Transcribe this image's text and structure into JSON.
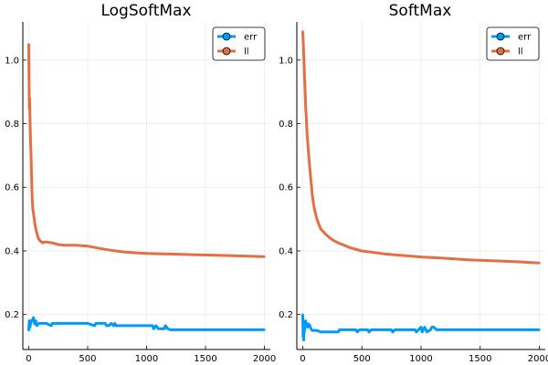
{
  "chart_data": [
    {
      "type": "line",
      "title": "LogSoftMax",
      "xlabel": "",
      "ylabel": "",
      "xlim": [
        -50,
        2050
      ],
      "ylim": [
        0.09,
        1.12
      ],
      "xticks": [
        0,
        500,
        1000,
        1500,
        2000
      ],
      "yticks": [
        0.2,
        0.4,
        0.6,
        0.8,
        1.0
      ],
      "xtick_labels": [
        "0",
        "500",
        "1000",
        "1500",
        "2000"
      ],
      "ytick_labels": [
        "0.2",
        "0.4",
        "0.6",
        "0.8",
        "1.0"
      ],
      "grid": true,
      "legend_position": "top-right",
      "series": [
        {
          "name": "err",
          "color": "#009af9",
          "x": [
            0,
            5,
            10,
            20,
            30,
            40,
            50,
            60,
            70,
            80,
            90,
            100,
            150,
            190,
            200,
            300,
            500,
            560,
            570,
            580,
            600,
            650,
            660,
            680,
            700,
            720,
            730,
            740,
            800,
            900,
            1000,
            1050,
            1060,
            1080,
            1100,
            1150,
            1160,
            1180,
            1200,
            1300,
            1500,
            1700,
            2000
          ],
          "y": [
            0.15,
            0.18,
            0.16,
            0.18,
            0.18,
            0.19,
            0.17,
            0.18,
            0.165,
            0.17,
            0.172,
            0.172,
            0.172,
            0.165,
            0.172,
            0.172,
            0.172,
            0.165,
            0.172,
            0.172,
            0.172,
            0.172,
            0.165,
            0.165,
            0.172,
            0.165,
            0.172,
            0.165,
            0.165,
            0.165,
            0.165,
            0.165,
            0.155,
            0.165,
            0.155,
            0.155,
            0.165,
            0.155,
            0.152,
            0.152,
            0.152,
            0.152,
            0.152
          ]
        },
        {
          "name": "ll",
          "color": "#e26f46",
          "x": [
            0,
            3,
            5,
            8,
            10,
            15,
            20,
            25,
            30,
            35,
            40,
            50,
            60,
            70,
            80,
            90,
            100,
            110,
            120,
            130,
            150,
            200,
            250,
            300,
            400,
            500,
            600,
            700,
            800,
            900,
            1000,
            1200,
            1400,
            1600,
            1800,
            2000
          ],
          "y": [
            1.05,
            0.95,
            0.85,
            0.88,
            0.84,
            0.75,
            0.7,
            0.62,
            0.56,
            0.53,
            0.52,
            0.49,
            0.47,
            0.455,
            0.44,
            0.435,
            0.43,
            0.428,
            0.425,
            0.428,
            0.428,
            0.425,
            0.42,
            0.418,
            0.418,
            0.415,
            0.408,
            0.402,
            0.397,
            0.394,
            0.392,
            0.39,
            0.388,
            0.386,
            0.384,
            0.382
          ]
        }
      ]
    },
    {
      "type": "line",
      "title": "SoftMax",
      "xlabel": "",
      "ylabel": "",
      "xlim": [
        -50,
        2050
      ],
      "ylim": [
        0.09,
        1.12
      ],
      "xticks": [
        0,
        500,
        1000,
        1500,
        2000
      ],
      "yticks": [
        0.2,
        0.4,
        0.6,
        0.8,
        1.0
      ],
      "xtick_labels": [
        "0",
        "500",
        "1000",
        "1500",
        "2000"
      ],
      "ytick_labels": [
        "0.2",
        "0.4",
        "0.6",
        "0.8",
        "1.0"
      ],
      "grid": true,
      "legend_position": "top-right",
      "series": [
        {
          "name": "err",
          "color": "#009af9",
          "x": [
            0,
            3,
            5,
            8,
            10,
            15,
            20,
            25,
            30,
            35,
            40,
            50,
            60,
            70,
            80,
            90,
            100,
            110,
            120,
            150,
            200,
            300,
            310,
            400,
            450,
            460,
            480,
            500,
            550,
            560,
            580,
            600,
            700,
            750,
            760,
            780,
            800,
            900,
            950,
            960,
            1000,
            1010,
            1030,
            1050,
            1080,
            1090,
            1110,
            1130,
            1200,
            1500,
            1800,
            2000
          ],
          "y": [
            0.2,
            0.13,
            0.15,
            0.12,
            0.14,
            0.15,
            0.17,
            0.18,
            0.165,
            0.17,
            0.16,
            0.17,
            0.165,
            0.155,
            0.15,
            0.15,
            0.15,
            0.15,
            0.15,
            0.145,
            0.145,
            0.145,
            0.152,
            0.152,
            0.152,
            0.145,
            0.152,
            0.152,
            0.152,
            0.145,
            0.152,
            0.152,
            0.152,
            0.152,
            0.145,
            0.152,
            0.152,
            0.152,
            0.152,
            0.145,
            0.16,
            0.145,
            0.16,
            0.145,
            0.152,
            0.16,
            0.16,
            0.152,
            0.152,
            0.152,
            0.152,
            0.152
          ]
        },
        {
          "name": "ll",
          "color": "#e26f46",
          "x": [
            0,
            5,
            10,
            15,
            20,
            25,
            30,
            35,
            40,
            50,
            60,
            70,
            80,
            90,
            100,
            120,
            150,
            200,
            250,
            300,
            350,
            400,
            500,
            600,
            700,
            800,
            900,
            1000,
            1200,
            1400,
            1600,
            1800,
            2000
          ],
          "y": [
            1.09,
            1.05,
            1.0,
            0.95,
            0.9,
            0.85,
            0.82,
            0.78,
            0.75,
            0.7,
            0.66,
            0.62,
            0.58,
            0.55,
            0.53,
            0.5,
            0.47,
            0.45,
            0.435,
            0.425,
            0.418,
            0.41,
            0.4,
            0.395,
            0.39,
            0.387,
            0.384,
            0.381,
            0.377,
            0.372,
            0.369,
            0.366,
            0.362
          ]
        }
      ]
    }
  ]
}
